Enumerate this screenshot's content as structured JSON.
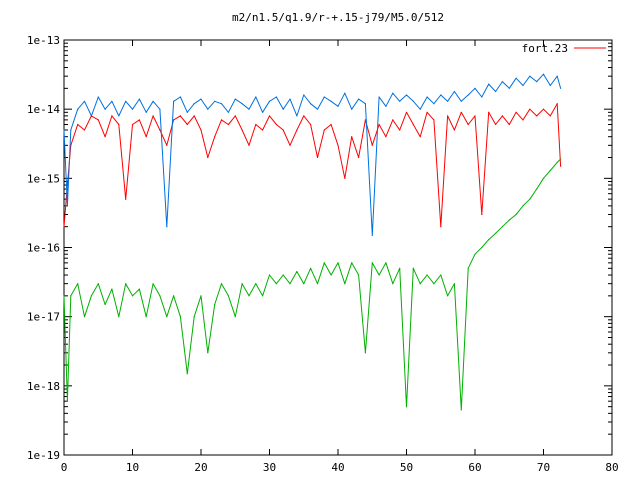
{
  "chart_data": {
    "type": "line",
    "title": "m2/n1.5/q1.9/r-+.15-j79/M5.0/512",
    "xlabel": "",
    "ylabel": "",
    "xlim": [
      0,
      80
    ],
    "ylim": [
      1e-19,
      1e-13
    ],
    "yscale": "log",
    "grid": false,
    "legend_position": "top-right",
    "x_ticks": [
      "0",
      "10",
      "20",
      "30",
      "40",
      "50",
      "60",
      "70",
      "80"
    ],
    "y_ticks": [
      "1e-19",
      "1e-18",
      "1e-17",
      "1e-16",
      "1e-15",
      "1e-14",
      "1e-13"
    ],
    "series": [
      {
        "name": "fort.23",
        "color": "#ff0000",
        "points": [
          [
            0,
            2e-16
          ],
          [
            0.5,
            8e-16
          ],
          [
            1,
            3e-15
          ],
          [
            2,
            6e-15
          ],
          [
            3,
            5e-15
          ],
          [
            4,
            8e-15
          ],
          [
            5,
            7e-15
          ],
          [
            6,
            4e-15
          ],
          [
            7,
            8e-15
          ],
          [
            8,
            6e-15
          ],
          [
            9,
            5e-16
          ],
          [
            10,
            6e-15
          ],
          [
            11,
            7e-15
          ],
          [
            12,
            4e-15
          ],
          [
            13,
            8e-15
          ],
          [
            14,
            5e-15
          ],
          [
            15,
            3e-15
          ],
          [
            16,
            7e-15
          ],
          [
            17,
            8e-15
          ],
          [
            18,
            6e-15
          ],
          [
            19,
            8e-15
          ],
          [
            20,
            5e-15
          ],
          [
            21,
            2e-15
          ],
          [
            22,
            4e-15
          ],
          [
            23,
            7e-15
          ],
          [
            24,
            6e-15
          ],
          [
            25,
            8e-15
          ],
          [
            26,
            5e-15
          ],
          [
            27,
            3e-15
          ],
          [
            28,
            6e-15
          ],
          [
            29,
            5e-15
          ],
          [
            30,
            8e-15
          ],
          [
            31,
            6e-15
          ],
          [
            32,
            5e-15
          ],
          [
            33,
            3e-15
          ],
          [
            34,
            5e-15
          ],
          [
            35,
            8e-15
          ],
          [
            36,
            6e-15
          ],
          [
            37,
            2e-15
          ],
          [
            38,
            5e-15
          ],
          [
            39,
            6e-15
          ],
          [
            40,
            3e-15
          ],
          [
            41,
            1e-15
          ],
          [
            42,
            4e-15
          ],
          [
            43,
            2e-15
          ],
          [
            44,
            7e-15
          ],
          [
            45,
            3e-15
          ],
          [
            46,
            6e-15
          ],
          [
            47,
            4e-15
          ],
          [
            48,
            7e-15
          ],
          [
            49,
            5e-15
          ],
          [
            50,
            9e-15
          ],
          [
            51,
            6e-15
          ],
          [
            52,
            4e-15
          ],
          [
            53,
            9e-15
          ],
          [
            54,
            7e-15
          ],
          [
            55,
            2e-16
          ],
          [
            56,
            8e-15
          ],
          [
            57,
            5e-15
          ],
          [
            58,
            9e-15
          ],
          [
            59,
            6e-15
          ],
          [
            60,
            8e-15
          ],
          [
            61,
            3e-16
          ],
          [
            62,
            9e-15
          ],
          [
            63,
            6e-15
          ],
          [
            64,
            8e-15
          ],
          [
            65,
            6e-15
          ],
          [
            66,
            9e-15
          ],
          [
            67,
            7e-15
          ],
          [
            68,
            1e-14
          ],
          [
            69,
            8e-15
          ],
          [
            70,
            1e-14
          ],
          [
            71,
            8e-15
          ],
          [
            72,
            1.2e-14
          ],
          [
            72.5,
            1.5e-15
          ]
        ]
      },
      {
        "name": "",
        "color": "#0070e0",
        "points": [
          [
            0,
            5e-15
          ],
          [
            0.5,
            4e-16
          ],
          [
            1,
            5e-15
          ],
          [
            2,
            1e-14
          ],
          [
            3,
            1.3e-14
          ],
          [
            4,
            8e-15
          ],
          [
            5,
            1.5e-14
          ],
          [
            6,
            1e-14
          ],
          [
            7,
            1.3e-14
          ],
          [
            8,
            8e-15
          ],
          [
            9,
            1.3e-14
          ],
          [
            10,
            1e-14
          ],
          [
            11,
            1.4e-14
          ],
          [
            12,
            9e-15
          ],
          [
            13,
            1.3e-14
          ],
          [
            14,
            1e-14
          ],
          [
            15,
            2e-16
          ],
          [
            16,
            1.3e-14
          ],
          [
            17,
            1.5e-14
          ],
          [
            18,
            9e-15
          ],
          [
            19,
            1.2e-14
          ],
          [
            20,
            1.4e-14
          ],
          [
            21,
            1e-14
          ],
          [
            22,
            1.3e-14
          ],
          [
            23,
            1.2e-14
          ],
          [
            24,
            9e-15
          ],
          [
            25,
            1.4e-14
          ],
          [
            26,
            1.2e-14
          ],
          [
            27,
            1e-14
          ],
          [
            28,
            1.5e-14
          ],
          [
            29,
            9e-15
          ],
          [
            30,
            1.3e-14
          ],
          [
            31,
            1.5e-14
          ],
          [
            32,
            1e-14
          ],
          [
            33,
            1.4e-14
          ],
          [
            34,
            8e-15
          ],
          [
            35,
            1.6e-14
          ],
          [
            36,
            1.2e-14
          ],
          [
            37,
            1e-14
          ],
          [
            38,
            1.5e-14
          ],
          [
            39,
            1.3e-14
          ],
          [
            40,
            1.1e-14
          ],
          [
            41,
            1.7e-14
          ],
          [
            42,
            1e-14
          ],
          [
            43,
            1.4e-14
          ],
          [
            44,
            1.2e-14
          ],
          [
            45,
            1.5e-16
          ],
          [
            46,
            1.5e-14
          ],
          [
            47,
            1.1e-14
          ],
          [
            48,
            1.7e-14
          ],
          [
            49,
            1.3e-14
          ],
          [
            50,
            1.6e-14
          ],
          [
            51,
            1.3e-14
          ],
          [
            52,
            1e-14
          ],
          [
            53,
            1.5e-14
          ],
          [
            54,
            1.2e-14
          ],
          [
            55,
            1.6e-14
          ],
          [
            56,
            1.3e-14
          ],
          [
            57,
            1.8e-14
          ],
          [
            58,
            1.3e-14
          ],
          [
            59,
            1.6e-14
          ],
          [
            60,
            2e-14
          ],
          [
            61,
            1.5e-14
          ],
          [
            62,
            2.3e-14
          ],
          [
            63,
            1.8e-14
          ],
          [
            64,
            2.5e-14
          ],
          [
            65,
            2e-14
          ],
          [
            66,
            2.8e-14
          ],
          [
            67,
            2.2e-14
          ],
          [
            68,
            3e-14
          ],
          [
            69,
            2.5e-14
          ],
          [
            70,
            3.2e-14
          ],
          [
            71,
            2.2e-14
          ],
          [
            72,
            3e-14
          ],
          [
            72.5,
            2e-14
          ]
        ]
      },
      {
        "name": "",
        "color": "#00b000",
        "points": [
          [
            0,
            2e-17
          ],
          [
            0.5,
            6e-19
          ],
          [
            1,
            2e-17
          ],
          [
            2,
            3e-17
          ],
          [
            3,
            1e-17
          ],
          [
            4,
            2e-17
          ],
          [
            5,
            3e-17
          ],
          [
            6,
            1.5e-17
          ],
          [
            7,
            2.5e-17
          ],
          [
            8,
            1e-17
          ],
          [
            9,
            3e-17
          ],
          [
            10,
            2e-17
          ],
          [
            11,
            2.5e-17
          ],
          [
            12,
            1e-17
          ],
          [
            13,
            3e-17
          ],
          [
            14,
            2e-17
          ],
          [
            15,
            1e-17
          ],
          [
            16,
            2e-17
          ],
          [
            17,
            1e-17
          ],
          [
            18,
            1.5e-18
          ],
          [
            19,
            1e-17
          ],
          [
            20,
            2e-17
          ],
          [
            21,
            3e-18
          ],
          [
            22,
            1.5e-17
          ],
          [
            23,
            3e-17
          ],
          [
            24,
            2e-17
          ],
          [
            25,
            1e-17
          ],
          [
            26,
            3e-17
          ],
          [
            27,
            2e-17
          ],
          [
            28,
            3e-17
          ],
          [
            29,
            2e-17
          ],
          [
            30,
            4e-17
          ],
          [
            31,
            3e-17
          ],
          [
            32,
            4e-17
          ],
          [
            33,
            3e-17
          ],
          [
            34,
            4.5e-17
          ],
          [
            35,
            3e-17
          ],
          [
            36,
            5e-17
          ],
          [
            37,
            3e-17
          ],
          [
            38,
            6e-17
          ],
          [
            39,
            4e-17
          ],
          [
            40,
            6e-17
          ],
          [
            41,
            3e-17
          ],
          [
            42,
            6e-17
          ],
          [
            43,
            4e-17
          ],
          [
            44,
            3e-18
          ],
          [
            45,
            6e-17
          ],
          [
            46,
            4e-17
          ],
          [
            47,
            6e-17
          ],
          [
            48,
            3e-17
          ],
          [
            49,
            5e-17
          ],
          [
            50,
            5e-19
          ],
          [
            51,
            5e-17
          ],
          [
            52,
            3e-17
          ],
          [
            53,
            4e-17
          ],
          [
            54,
            3e-17
          ],
          [
            55,
            4e-17
          ],
          [
            56,
            2e-17
          ],
          [
            57,
            3e-17
          ],
          [
            58,
            4.5e-19
          ],
          [
            59,
            5e-17
          ],
          [
            60,
            8e-17
          ],
          [
            61,
            1e-16
          ],
          [
            62,
            1.3e-16
          ],
          [
            63,
            1.6e-16
          ],
          [
            64,
            2e-16
          ],
          [
            65,
            2.5e-16
          ],
          [
            66,
            3e-16
          ],
          [
            67,
            4e-16
          ],
          [
            68,
            5e-16
          ],
          [
            69,
            7e-16
          ],
          [
            70,
            1e-15
          ],
          [
            71,
            1.3e-15
          ],
          [
            72,
            1.7e-15
          ],
          [
            72.5,
            1.9e-15
          ]
        ]
      }
    ]
  }
}
